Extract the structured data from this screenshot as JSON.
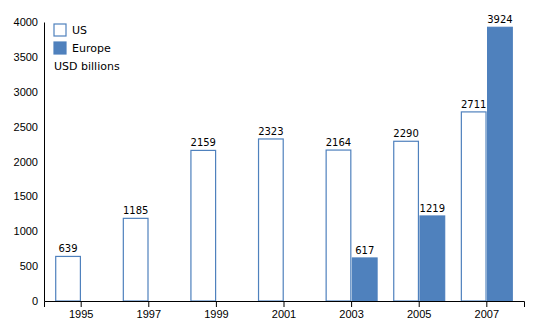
{
  "chart_data": {
    "type": "bar",
    "subtitle": "USD billions",
    "categories": [
      "1995",
      "1997",
      "1999",
      "2001",
      "2003",
      "2005",
      "2007"
    ],
    "series": [
      {
        "name": "US",
        "color": "#ffffff",
        "values": [
          639,
          1185,
          2159,
          2323,
          2164,
          2290,
          2711
        ]
      },
      {
        "name": "Europe",
        "color": "#4f81bd",
        "values": [
          null,
          null,
          null,
          null,
          617,
          1219,
          3924
        ]
      }
    ],
    "ylim": [
      0,
      4000
    ],
    "yticks": [
      0,
      500,
      1000,
      1500,
      2000,
      2500,
      3000,
      3500,
      4000
    ],
    "data_labels": true,
    "legend": "upper left",
    "grid": false
  }
}
